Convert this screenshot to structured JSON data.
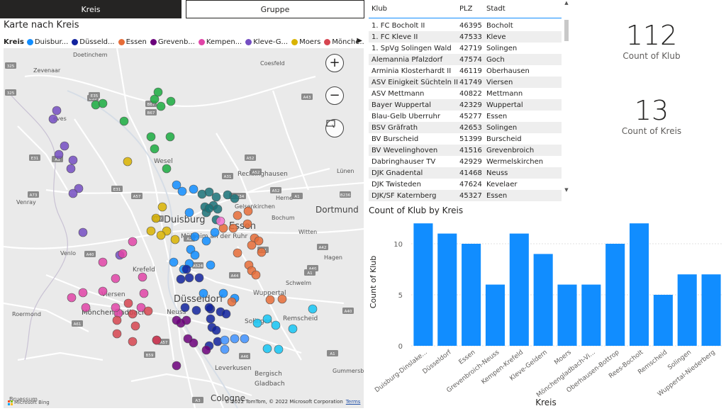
{
  "tabs": [
    {
      "label": "Kreis",
      "active": true
    },
    {
      "label": "Gruppe",
      "active": false
    }
  ],
  "map": {
    "title": "Karte nach Kreis",
    "legend_title": "Kreis",
    "legend": [
      {
        "label": "Duisbur...",
        "color": "#118dff"
      },
      {
        "label": "Düsseld...",
        "color": "#12239e"
      },
      {
        "label": "Essen",
        "color": "#e66c37"
      },
      {
        "label": "Grevenb...",
        "color": "#6b007b"
      },
      {
        "label": "Kempen...",
        "color": "#e044a7"
      },
      {
        "label": "Kleve-G...",
        "color": "#744ec2"
      },
      {
        "label": "Moers",
        "color": "#d9b300"
      },
      {
        "label": "Mönche...",
        "color": "#d64550"
      }
    ],
    "legend_more": "▶",
    "zoom_in_icon": "+",
    "zoom_out_icon": "−",
    "footer": "© 2022 TomTom, © 2022 Microsoft Corporation",
    "terms": "Terms",
    "logo": "Microsoft Bing",
    "labels": {
      "doetinchem": "Doetinchem",
      "zevenaar": "Zevenaar",
      "coesfeld": "Coesfeld",
      "wesel": "Wesel",
      "recklinghausen": "Recklinghausen",
      "luenen": "Lünen",
      "venray": "Venray",
      "herne": "Herne",
      "dortmund": "Dortmund",
      "duisburg": "Duisburg",
      "essen": "Essen",
      "gelsenkirchen": "Gelsenkirchen",
      "bochum": "Bochum",
      "witten": "Witten",
      "hagen": "Hagen",
      "muelheim": "Mülheim an der Ruhr",
      "venlo": "Venlo",
      "krefeld": "Krefeld",
      "viersen": "Viersen",
      "roermond": "Roermond",
      "moenchengladbach": "Mönchengladbach",
      "duesseldorf": "Düsseldorf",
      "neuss": "Neuss",
      "wuppertal": "Wuppertal",
      "schwelm": "Schwelm",
      "solingen": "Solingen",
      "remscheid": "Remscheid",
      "leverkusen": "Leverkusen",
      "bergisch": "Bergisch",
      "gladbach": "Gladbach",
      "gummersbach": "Gummersbach",
      "cologne": "Cologne",
      "roermond2": "Bruessum",
      "ewes": "eves"
    },
    "road_shields": [
      "325",
      "325",
      "E35",
      "B67",
      "A43",
      "E31",
      "B67",
      "A3",
      "E34",
      "E35",
      "A31",
      "A52",
      "A52",
      "A57",
      "A57",
      "E31",
      "A73",
      "A2",
      "A1",
      "B236",
      "A42",
      "A40",
      "A40",
      "E34",
      "A52",
      "A524",
      "A44",
      "A1",
      "A46",
      "A57",
      "A61",
      "B59",
      "A1",
      "A3",
      "E31",
      "A40"
    ]
  },
  "table": {
    "columns": [
      "Klub",
      "PLZ",
      "Stadt"
    ],
    "rows": [
      [
        "1. FC Bocholt II",
        "46395",
        "Bocholt"
      ],
      [
        "1. FC Kleve II",
        "47533",
        "Kleve"
      ],
      [
        "1. SpVg Solingen Wald",
        "42719",
        "Solingen"
      ],
      [
        "Alemannia Pfalzdorf",
        "47574",
        "Goch"
      ],
      [
        "Arminia Klosterhardt II",
        "46119",
        "Oberhausen"
      ],
      [
        "ASV Einigkeit Süchteln II",
        "41749",
        "Viersen"
      ],
      [
        "ASV Mettmann",
        "40822",
        "Mettmann"
      ],
      [
        "Bayer Wuppertal",
        "42329",
        "Wuppertal"
      ],
      [
        "Blau-Gelb Überruhr",
        "45277",
        "Essen"
      ],
      [
        "BSV Gräfrath",
        "42653",
        "Solingen"
      ],
      [
        "BV Burscheid",
        "51399",
        "Burscheid"
      ],
      [
        "BV Wevelinghoven",
        "41516",
        "Grevenbroich"
      ],
      [
        "Dabringhauser TV",
        "42929",
        "Wermelskirchen"
      ],
      [
        "DJK Gnadental",
        "41468",
        "Neuss"
      ],
      [
        "DJK Twisteden",
        "47624",
        "Kevelaer"
      ],
      [
        "DJK/SF Katernberg",
        "45327",
        "Essen"
      ]
    ],
    "scroll_up": "▲",
    "scroll_down": "▼"
  },
  "cards": [
    {
      "value": "112",
      "label": "Count of Klub"
    },
    {
      "value": "13",
      "label": "Count of Kreis"
    }
  ],
  "chart_data": {
    "type": "bar",
    "title": "Count of Klub by Kreis",
    "xlabel": "Kreis",
    "ylabel": "Count of Klub",
    "categories": [
      "Duisburg-Dinslake...",
      "Düsseldorf",
      "Essen",
      "Grevenbroich-Neuss",
      "Kempen-Krefeld",
      "Kleve-Geldern",
      "Moers",
      "Mönchengladbach-Vi...",
      "Oberhausen-Bottrop",
      "Rees-Bocholt",
      "Remscheid",
      "Solingen",
      "Wuppertal-Niederberg"
    ],
    "values": [
      12,
      11,
      10,
      6,
      11,
      9,
      6,
      6,
      10,
      12,
      5,
      7,
      7
    ],
    "yticks": [
      0,
      5,
      10
    ],
    "ylim": [
      0,
      12.5
    ],
    "bar_color": "#118dff",
    "grid": true
  }
}
